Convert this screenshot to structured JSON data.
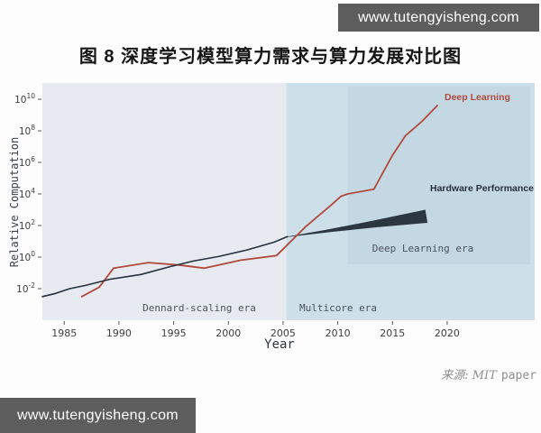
{
  "watermarks": {
    "top": "www.tutengyisheng.com",
    "bottom": "www.tutengyisheng.com"
  },
  "source": {
    "prefix": "来源: MIT",
    "suffix": "paper"
  },
  "chart_data": {
    "type": "line",
    "title": "图 8 深度学习模型算力需求与算力发展对比图",
    "xlabel": "Year",
    "ylabel": "Relative Computation",
    "y_scale": "log10",
    "grid": false,
    "legend_position": "inline-annotations",
    "x_range": [
      1983,
      2028
    ],
    "y_log_range": [
      -4,
      11.03
    ],
    "x_ticks": [
      1985,
      1990,
      1995,
      2000,
      2005,
      2010,
      2015,
      2020
    ],
    "y_tick_exponents": [
      10,
      8,
      6,
      4,
      2,
      0,
      -2
    ],
    "regions": [
      {
        "label": "Dennard-scaling era",
        "x": [
          1983,
          2005.3
        ],
        "color": "#e8eaf2"
      },
      {
        "label": "Multicore era",
        "x": [
          2005.3,
          2028
        ],
        "color": "#cddfe9"
      },
      {
        "label": "Deep Learning era",
        "x": [
          2010.9,
          2027.6
        ],
        "y_log": [
          -0.45,
          10.8
        ],
        "color": "#c4d8e4"
      }
    ],
    "series": [
      {
        "name": "Deep Learning",
        "color": "#b04a3c",
        "points": [
          [
            1986.6,
            -2.5
          ],
          [
            1988.2,
            -1.9
          ],
          [
            1989.5,
            -0.7
          ],
          [
            1992.7,
            -0.35
          ],
          [
            1995.5,
            -0.5
          ],
          [
            1997.8,
            -0.7
          ],
          [
            2001.1,
            -0.2
          ],
          [
            2004.4,
            0.1
          ],
          [
            2007.1,
            1.95
          ],
          [
            2009.4,
            3.3
          ],
          [
            2010.3,
            3.85
          ],
          [
            2010.9,
            4.0
          ],
          [
            2013.3,
            4.3
          ],
          [
            2015.0,
            6.45
          ],
          [
            2016.2,
            7.7
          ],
          [
            2017.7,
            8.6
          ],
          [
            2019.1,
            9.6
          ]
        ]
      },
      {
        "name": "Hardware Performance",
        "color": "#25313c",
        "points": [
          [
            1983.0,
            -2.5
          ],
          [
            1984.2,
            -2.3
          ],
          [
            1985.5,
            -2.0
          ],
          [
            1986.9,
            -1.8
          ],
          [
            1989.2,
            -1.4
          ],
          [
            1992.0,
            -1.1
          ],
          [
            1994.7,
            -0.6
          ],
          [
            1996.8,
            -0.25
          ],
          [
            1999.2,
            0.05
          ],
          [
            2001.7,
            0.45
          ],
          [
            2004.2,
            0.95
          ],
          [
            2005.4,
            1.3
          ]
        ],
        "band": {
          "top": [
            [
              2005.4,
              1.3
            ],
            [
              2008.7,
              1.7
            ],
            [
              2012.8,
              2.25
            ],
            [
              2018.0,
              3.0
            ]
          ],
          "bottom": [
            [
              2005.4,
              1.27
            ],
            [
              2009.5,
              1.6
            ],
            [
              2013.7,
              1.9
            ],
            [
              2018.2,
              2.17
            ]
          ]
        }
      }
    ]
  }
}
